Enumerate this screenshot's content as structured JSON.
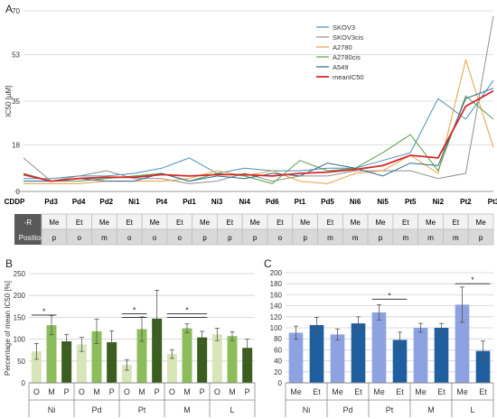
{
  "panel_labels": {
    "a": "A",
    "b": "B",
    "c": "C"
  },
  "chart_data": [
    {
      "type": "line",
      "panel": "A",
      "ylabel": "IC50 [µM]",
      "ylim": [
        0,
        70
      ],
      "yticks": [
        0,
        18,
        35,
        53,
        70
      ],
      "categories": [
        "CDDP",
        "Pd3",
        "Pd4",
        "Pd2",
        "Ni1",
        "Pt4",
        "Pd1",
        "Ni3",
        "Ni4",
        "Pd6",
        "Pt1",
        "Pd5",
        "Ni6",
        "Ni5",
        "Pt5",
        "Ni2",
        "Pt2",
        "Pt3"
      ],
      "legend_position": "top-right",
      "series": [
        {
          "name": "SKOV3",
          "color": "#4a90b8",
          "values": [
            5,
            5,
            6,
            6,
            7,
            9,
            13,
            7,
            9,
            8,
            8,
            9,
            9,
            12,
            15,
            36,
            28,
            43
          ]
        },
        {
          "name": "SKOV3cis",
          "color": "#8f8f8f",
          "values": [
            13,
            4,
            6,
            8,
            5,
            5,
            3,
            4,
            7,
            4,
            6,
            6,
            8,
            8,
            8,
            5,
            7,
            68
          ]
        },
        {
          "name": "A2780",
          "color": "#e8a040",
          "values": [
            3,
            3,
            3,
            4,
            4,
            4,
            5,
            8,
            6,
            8,
            4,
            3,
            7,
            8,
            14,
            7,
            51,
            17
          ]
        },
        {
          "name": "A2780cis",
          "color": "#5a9e4b",
          "values": [
            7,
            4,
            4,
            5,
            6,
            7,
            4,
            7,
            6,
            3,
            12,
            8,
            9,
            15,
            22,
            8,
            37,
            28
          ]
        },
        {
          "name": "A549",
          "color": "#2d6a8f",
          "values": [
            4,
            4,
            5,
            4,
            4,
            7,
            4,
            6,
            5,
            7,
            6,
            11,
            9,
            6,
            11,
            10,
            36,
            40
          ]
        },
        {
          "name": "meanIC50",
          "color": "#d42a2a",
          "values": [
            6.5,
            4,
            5,
            5.5,
            5.5,
            6.5,
            6,
            6.5,
            6.5,
            6,
            7,
            7.5,
            8.5,
            10,
            14,
            13,
            33,
            39
          ]
        }
      ],
      "table": {
        "row1_label": "-R",
        "row2_label": "Position",
        "row1": [
          "Me",
          "Et",
          "Me",
          "Et",
          "Me",
          "Et",
          "Me",
          "Et",
          "Me",
          "Et",
          "Me",
          "Et",
          "Me",
          "Me",
          "Et",
          "Me",
          "Et",
          "Me"
        ],
        "row2": [
          "p",
          "o",
          "m",
          "o",
          "o",
          "o",
          "p",
          "p",
          "p",
          "o",
          "p",
          "m",
          "m",
          "p",
          "m",
          "m",
          "m",
          "p"
        ]
      }
    },
    {
      "type": "bar",
      "panel": "B",
      "ylabel": "Percentage of mean IC50 [%]",
      "ylim": [
        0,
        250
      ],
      "yticks": [
        0,
        50,
        100,
        150,
        200,
        250
      ],
      "groups": [
        "Ni",
        "Pd",
        "Pt",
        "M",
        "L"
      ],
      "bar_labels": [
        "O",
        "M",
        "P",
        "O",
        "M",
        "P",
        "O",
        "M",
        "P",
        "O",
        "M",
        "P",
        "O",
        "M",
        "P"
      ],
      "values": [
        72,
        132,
        95,
        88,
        118,
        93,
        41,
        123,
        147,
        66,
        125,
        104,
        111,
        107,
        80
      ],
      "errors": [
        18,
        22,
        16,
        16,
        28,
        26,
        12,
        28,
        65,
        10,
        10,
        14,
        14,
        10,
        20
      ],
      "colors": [
        "#d6e6b8",
        "#8cbd5a",
        "#3b5e1f",
        "#d6e6b8",
        "#8cbd5a",
        "#3b5e1f",
        "#d6e6b8",
        "#8cbd5a",
        "#3b5e1f",
        "#d6e6b8",
        "#8cbd5a",
        "#3b5e1f",
        "#d6e6b8",
        "#8cbd5a",
        "#3b5e1f"
      ],
      "significance": "*"
    },
    {
      "type": "bar",
      "panel": "C",
      "ylim": [
        0,
        200
      ],
      "yticks": [
        0,
        20,
        40,
        60,
        80,
        100,
        120,
        140,
        160,
        180,
        200
      ],
      "groups": [
        "Ni",
        "Pd",
        "Pt",
        "M",
        "L"
      ],
      "bar_labels": [
        "Me",
        "Et",
        "Me",
        "Et",
        "Me",
        "Et",
        "Me",
        "Et",
        "Me",
        "Et"
      ],
      "values": [
        91,
        105,
        88,
        108,
        128,
        78,
        100,
        100,
        142,
        58
      ],
      "errors": [
        12,
        14,
        10,
        12,
        14,
        14,
        8,
        8,
        32,
        18
      ],
      "colors": [
        "#8da2e0",
        "#1f5fa0",
        "#8da2e0",
        "#1f5fa0",
        "#8da2e0",
        "#1f5fa0",
        "#8da2e0",
        "#1f5fa0",
        "#8da2e0",
        "#1f5fa0"
      ],
      "significance": "*"
    }
  ]
}
